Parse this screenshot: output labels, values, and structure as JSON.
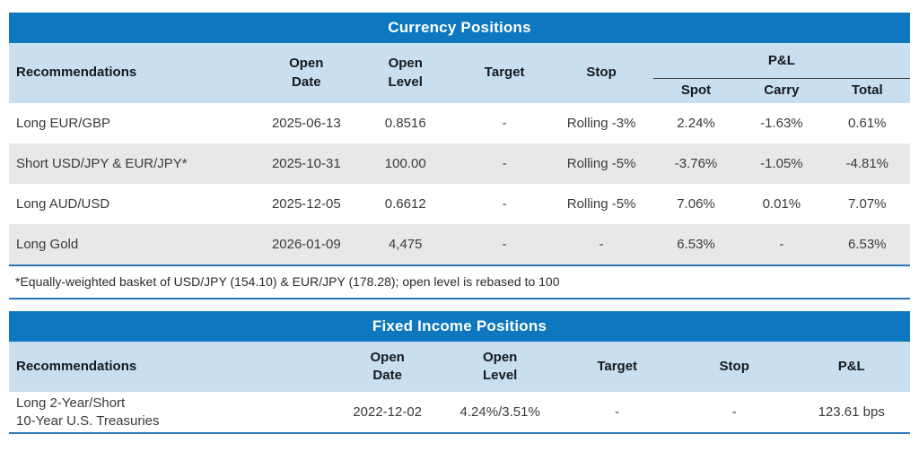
{
  "colors": {
    "title_bar": "#0d78bf",
    "header_bg": "#c9dff0",
    "row_alt": "#e8e8e8",
    "table_border": "#2e75b6"
  },
  "currency_table": {
    "title": "Currency Positions",
    "header": {
      "recommendations": "Recommendations",
      "open_date": "Open\nDate",
      "open_level": "Open\nLevel",
      "target": "Target",
      "stop": "Stop",
      "pnl": "P&L",
      "spot": "Spot",
      "carry": "Carry",
      "total": "Total"
    },
    "rows": [
      {
        "recommendation": "Long EUR/GBP",
        "open_date": "2025-06-13",
        "open_level": "0.8516",
        "target": "-",
        "stop": "Rolling -3%",
        "spot": "2.24%",
        "carry": "-1.63%",
        "total": "0.61%"
      },
      {
        "recommendation": "Short USD/JPY & EUR/JPY*",
        "open_date": "2025-10-31",
        "open_level": "100.00",
        "target": "-",
        "stop": "Rolling -5%",
        "spot": "-3.76%",
        "carry": "-1.05%",
        "total": "-4.81%"
      },
      {
        "recommendation": "Long AUD/USD",
        "open_date": "2025-12-05",
        "open_level": "0.6612",
        "target": "-",
        "stop": "Rolling -5%",
        "spot": "7.06%",
        "carry": "0.01%",
        "total": "7.07%"
      },
      {
        "recommendation": "Long Gold",
        "open_date": "2026-01-09",
        "open_level": "4,475",
        "target": "-",
        "stop": "-",
        "spot": "6.53%",
        "carry": "-",
        "total": "6.53%"
      }
    ],
    "footnote": "*Equally-weighted basket of USD/JPY (154.10) & EUR/JPY (178.28); open level is rebased to 100"
  },
  "fixed_income_table": {
    "title": "Fixed Income Positions",
    "header": {
      "recommendations": "Recommendations",
      "open_date": "Open\nDate",
      "open_level": "Open\nLevel",
      "target": "Target",
      "stop": "Stop",
      "pnl": "P&L"
    },
    "rows": [
      {
        "recommendation": "Long 2-Year/Short\n10-Year U.S. Treasuries",
        "open_date": "2022-12-02",
        "open_level": "4.24%/3.51%",
        "target": "-",
        "stop": "-",
        "pnl": "123.61 bps"
      }
    ]
  }
}
